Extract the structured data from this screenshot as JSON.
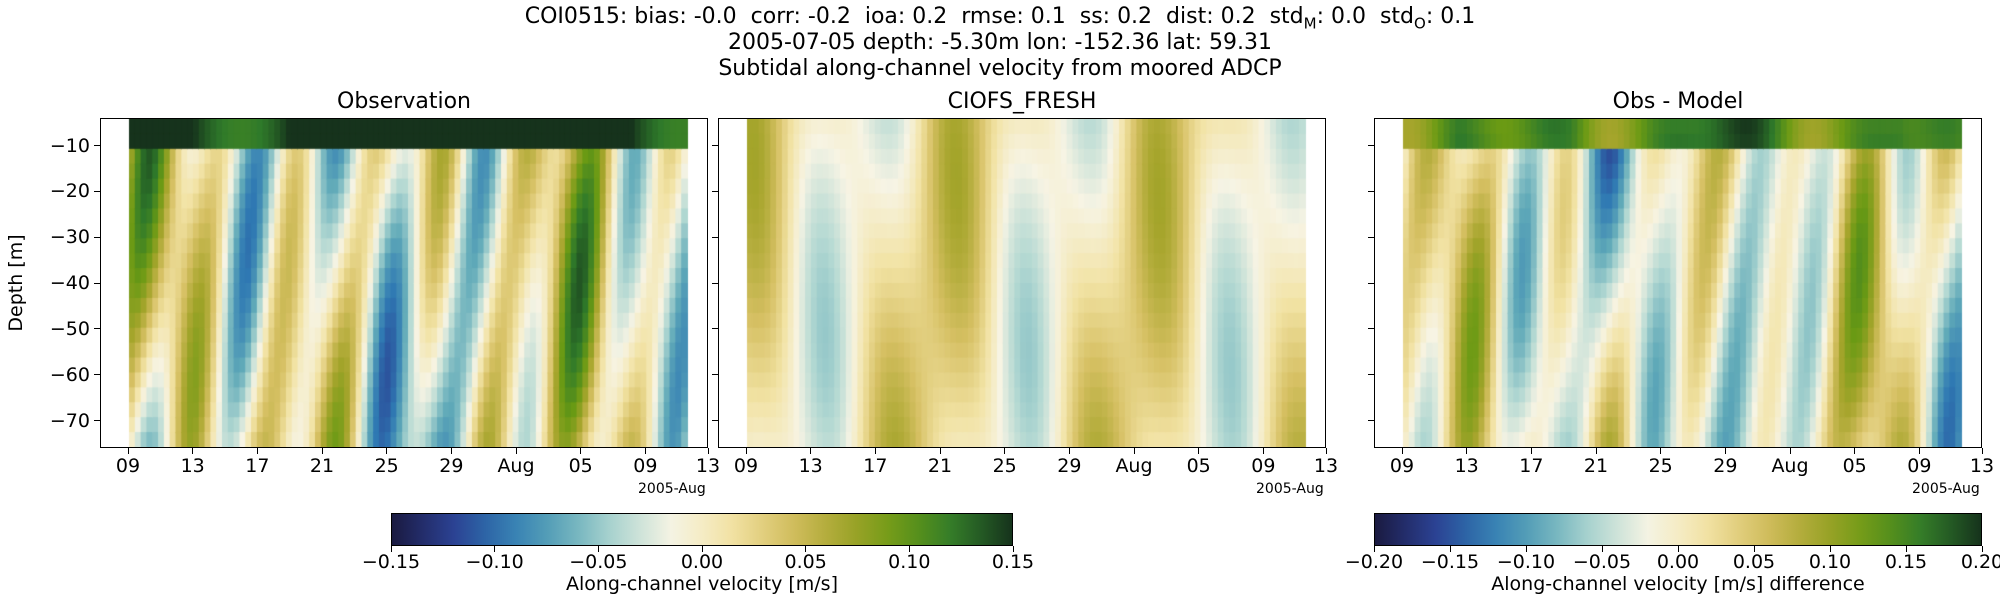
{
  "title": {
    "line1": "COI0515: bias: -0.0  corr: -0.2  ioa: 0.2  rmse: 0.1  ss: 0.2  dist: 0.2  std",
    "line1_subM": "M",
    "line1_mid": ": 0.0  std",
    "line1_subO": "O",
    "line1_end": ": 0.1",
    "line2": "2005-07-05 depth: -5.30m lon: -152.36 lat: 59.31",
    "line3": "Subtidal along-channel velocity from moored ADCP"
  },
  "colormap": [
    "#1a1a40",
    "#2a3c8f",
    "#2f79b3",
    "#5fa9b8",
    "#b2d8d2",
    "#f7f4e4",
    "#f2e3a5",
    "#d6c063",
    "#a6a52c",
    "#6a9a14",
    "#2f7a2a",
    "#16331c"
  ],
  "chart_data": [
    {
      "type": "heatmap",
      "title": "Observation",
      "ylabel": "Depth [m]",
      "xlabel": "",
      "x_ticks": [
        "09",
        "13",
        "17",
        "21",
        "25",
        "29",
        "Aug",
        "05",
        "09",
        "13"
      ],
      "x_offset_label": "2005-Aug",
      "y_ticks": [
        -10,
        -20,
        -30,
        -40,
        -50,
        -60,
        -70
      ],
      "ylim": [
        -76,
        -4
      ],
      "xlim": [
        "2005-07-05",
        "2005-08-13"
      ],
      "colorbar": {
        "range": [
          -0.15,
          0.15
        ],
        "ticks": [
          "−0.15",
          "−0.10",
          "−0.05",
          "0.00",
          "0.05",
          "0.10",
          "0.15"
        ],
        "label": "Along-channel velocity [m/s]"
      }
    },
    {
      "type": "heatmap",
      "title": "CIOFS_FRESH",
      "x_ticks": [
        "09",
        "13",
        "17",
        "21",
        "25",
        "29",
        "Aug",
        "05",
        "09",
        "13"
      ],
      "x_offset_label": "2005-Aug",
      "y_ticks": [
        -10,
        -20,
        -30,
        -40,
        -50,
        -60,
        -70
      ],
      "ylim": [
        -76,
        -4
      ],
      "colorbar": {
        "range": [
          -0.15,
          0.15
        ]
      }
    },
    {
      "type": "heatmap",
      "title": "Obs - Model",
      "x_ticks": [
        "09",
        "13",
        "17",
        "21",
        "25",
        "29",
        "Aug",
        "05",
        "09",
        "13"
      ],
      "x_offset_label": "2005-Aug",
      "y_ticks": [
        -10,
        -20,
        -30,
        -40,
        -50,
        -60,
        -70
      ],
      "ylim": [
        -76,
        -4
      ],
      "colorbar": {
        "range": [
          -0.2,
          0.2
        ],
        "ticks": [
          "−0.20",
          "−0.15",
          "−0.10",
          "−0.05",
          "0.00",
          "0.05",
          "0.10",
          "0.15",
          "0.20"
        ],
        "label": "Along-channel velocity [m/s] difference"
      }
    }
  ]
}
